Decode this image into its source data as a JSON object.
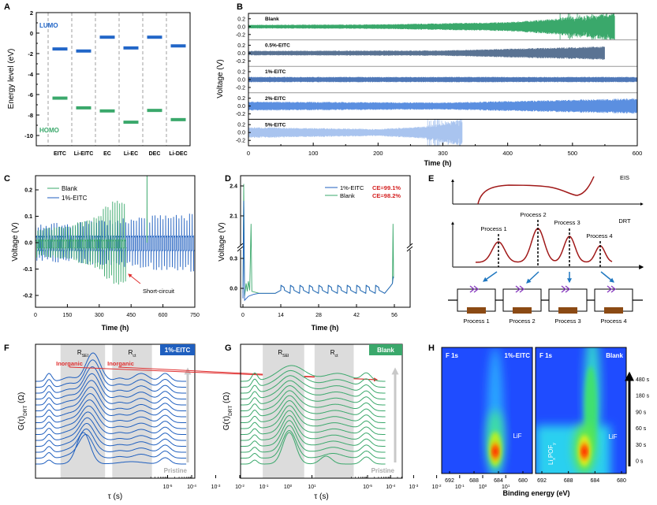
{
  "panels": {
    "A": "A",
    "B": "B",
    "C": "C",
    "D": "D",
    "E": "E",
    "F": "F",
    "G": "G",
    "H": "H"
  },
  "colors": {
    "lumo": "#2166c8",
    "homo": "#3aa86b",
    "blank": "#3aa86b",
    "eitc1": "#1f5fbf",
    "ce_text": "#d42020",
    "annotation_red": "#e03030",
    "drt_curve": "#a01818",
    "arrow_blue": "#1f77c0",
    "chevron_purple": "#8a3fc0",
    "resistor_brown": "#8b4a14",
    "shade_gray": "#dcdcdc",
    "heatmap_bg": "#1f4cff"
  },
  "chart_data": [
    {
      "id": "A",
      "type": "bar",
      "ylabel": "Energy level (eV)",
      "ylim": [
        -11,
        2
      ],
      "yticks": [
        "2",
        "0",
        "-2",
        "-4",
        "-6",
        "-8",
        "-10"
      ],
      "ytick_values": [
        2,
        0,
        -2,
        -4,
        -6,
        -8,
        -10
      ],
      "categories": [
        "EITC",
        "Li-EITC",
        "EC",
        "Li-EC",
        "DEC",
        "Li-DEC"
      ],
      "series": [
        {
          "name": "LUMO",
          "values": [
            -1.55,
            -1.75,
            -0.4,
            -1.45,
            -0.4,
            -1.25
          ]
        },
        {
          "name": "HOMO",
          "values": [
            -6.35,
            -7.3,
            -7.6,
            -8.7,
            -7.55,
            -8.45
          ]
        }
      ]
    },
    {
      "id": "B",
      "type": "line",
      "xlabel": "Time (h)",
      "ylabel": "Voltage (V)",
      "xlim": [
        0,
        600
      ],
      "ylim_each": [
        -0.3,
        0.3
      ],
      "xticks": [
        "0",
        "100",
        "200",
        "300",
        "400",
        "500",
        "600"
      ],
      "yticks": [
        "0.2",
        "0.0",
        "-0.2"
      ],
      "series": [
        {
          "name": "Blank",
          "color": "#3aa86b",
          "end_h": 565,
          "erratic_from_h": 480,
          "amplitude_v": [
            [
              0,
              0.04
            ],
            [
              200,
              0.05
            ],
            [
              400,
              0.1
            ],
            [
              480,
              0.18
            ],
            [
              565,
              0.3
            ]
          ]
        },
        {
          "name": "0.5%-EITC",
          "color": "#5a7393",
          "end_h": 550,
          "erratic_from_h": null,
          "amplitude_v": [
            [
              0,
              0.05
            ],
            [
              300,
              0.06
            ],
            [
              550,
              0.15
            ]
          ]
        },
        {
          "name": "1%-EITC",
          "color": "#4f78b8",
          "end_h": 600,
          "erratic_from_h": null,
          "amplitude_v": [
            [
              0,
              0.06
            ],
            [
              600,
              0.06
            ]
          ]
        },
        {
          "name": "2%-EITC",
          "color": "#5b8fe0",
          "end_h": 600,
          "erratic_from_h": null,
          "amplitude_v": [
            [
              0,
              0.1
            ],
            [
              300,
              0.08
            ],
            [
              600,
              0.17
            ]
          ]
        },
        {
          "name": "5%-EITC",
          "color": "#a9c4ef",
          "end_h": 330,
          "erratic_from_h": 275,
          "amplitude_v": [
            [
              0,
              0.12
            ],
            [
              200,
              0.08
            ],
            [
              270,
              0.13
            ],
            [
              330,
              0.3
            ]
          ]
        }
      ]
    },
    {
      "id": "C",
      "type": "line",
      "xlabel": "Time (h)",
      "ylabel": "Voltage (V)",
      "xlim": [
        0,
        750
      ],
      "ylim": [
        -0.25,
        0.25
      ],
      "xticks": [
        "0",
        "150",
        "300",
        "450",
        "600",
        "750"
      ],
      "yticks": [
        "0.2",
        "0.1",
        "0.0",
        "-0.1",
        "-0.2"
      ],
      "annotation": "Short-circuit",
      "series": [
        {
          "name": "Blank",
          "color": "#3aa86b",
          "period_h": 11,
          "end_h": 420,
          "plateau_v": [
            0.0,
            -0.02
          ],
          "peak_v": [
            [
              0,
              0.05
            ],
            [
              150,
              0.06
            ],
            [
              300,
              0.1
            ],
            [
              410,
              0.17
            ]
          ],
          "spike": {
            "t_h": 525,
            "v": 0.25
          }
        },
        {
          "name": "1%-EITC",
          "color": "#1f5fbf",
          "period_h": 12.5,
          "end_h": 750,
          "plateau_v": [
            0.015,
            -0.03
          ],
          "peak_v": [
            [
              0,
              0.06
            ],
            [
              750,
              0.1
            ]
          ]
        }
      ]
    },
    {
      "id": "D",
      "type": "line",
      "xlabel": "Time (h)",
      "ylabel": "Voltage (V)",
      "xlim": [
        0,
        56
      ],
      "y_break": [
        0.4,
        1.92
      ],
      "xticks": [
        "0",
        "14",
        "28",
        "42",
        "56"
      ],
      "yticks": [
        "2.4",
        "2.1",
        "0.3",
        "0.0"
      ],
      "ytick_values": [
        2.4,
        2.1,
        0.3,
        0.0
      ],
      "cycles": {
        "start_h": 14,
        "period_h": 3.5,
        "count": 12,
        "high_v": 0.03,
        "low_v": -0.05
      },
      "series": [
        {
          "name": "1%-EITC",
          "ce": "CE=99.1%",
          "color": "#1f5fbf",
          "pre": [
            [
              0,
              -0.1
            ],
            [
              0.3,
              2.25
            ],
            [
              0.6,
              -0.12
            ],
            [
              2,
              -0.08
            ],
            [
              4,
              -0.06
            ],
            [
              6,
              -0.05
            ],
            [
              12,
              -0.05
            ]
          ],
          "post": [
            [
              54.5,
              0.02
            ],
            [
              55.3,
              0.05
            ],
            [
              55.6,
              0.12
            ]
          ]
        },
        {
          "name": "Blank",
          "ce": "CE=98.2%",
          "color": "#3aa86b",
          "pre": [
            [
              0,
              -0.05
            ],
            [
              0.3,
              2.42
            ],
            [
              0.6,
              -0.08
            ],
            [
              1.2,
              0.05
            ],
            [
              1.6,
              -0.03
            ],
            [
              2,
              0.07
            ],
            [
              2.5,
              -0.02
            ],
            [
              3,
              2.02
            ],
            [
              3.3,
              -0.03
            ],
            [
              6,
              -0.05
            ],
            [
              12,
              -0.05
            ]
          ],
          "post": [
            [
              54.5,
              0.02
            ],
            [
              55.3,
              0.05
            ],
            [
              55.5,
              2.02
            ],
            [
              55.7,
              0.1
            ]
          ]
        }
      ]
    },
    {
      "id": "F",
      "type": "line",
      "xlabel": "τ (s)",
      "ylabel_main": "G(τ)",
      "ylabel_sub": "DRT",
      "ylabel_unit": " (Ω)",
      "badge": "1%-EITC",
      "bottom_label": "Pristine",
      "trace_count": 15,
      "xticks_exp": [
        "-5",
        "-4",
        "-3",
        "-2",
        "-1",
        "0",
        "1"
      ],
      "regions": [
        {
          "main": "R",
          "sub": "SEI",
          "log_tau": [
            -4.45,
            -2.6
          ]
        },
        {
          "main": "R",
          "sub": "ct",
          "log_tau": [
            -2.3,
            -0.65
          ]
        }
      ],
      "annotations": [
        "Inorganic",
        "Inorganic"
      ],
      "peaks_log_tau_height_width": {
        "pristine": [
          [
            -4.93,
            5,
            0.12
          ],
          [
            -3.5,
            40,
            0.28
          ],
          [
            -1.5,
            3,
            0.5
          ],
          [
            -0.1,
            8,
            0.2
          ]
        ],
        "early": [
          [
            -4.93,
            7,
            0.12
          ],
          [
            -4.1,
            3,
            0.25
          ],
          [
            -3.4,
            30,
            0.3
          ],
          [
            -2,
            2,
            0.2
          ],
          [
            -1.1,
            5,
            0.3
          ],
          [
            -0.1,
            9,
            0.2
          ]
        ],
        "final": [
          [
            -4.93,
            10,
            0.12
          ],
          [
            -4.1,
            5,
            0.25
          ],
          [
            -3.1,
            36,
            0.3
          ],
          [
            -2,
            4,
            0.2
          ],
          [
            -1.1,
            10,
            0.3
          ],
          [
            -0.1,
            10,
            0.2
          ]
        ]
      }
    },
    {
      "id": "G",
      "type": "line",
      "xlabel": "τ (s)",
      "ylabel_main": "G(τ)",
      "ylabel_sub": "DRT",
      "ylabel_unit": " (Ω)",
      "badge": "Blank",
      "bottom_label": "Pristine",
      "trace_count": 15,
      "xticks_exp": [
        "-5",
        "-4",
        "-3",
        "-2",
        "-1",
        "0",
        "1"
      ],
      "regions": [
        {
          "main": "R",
          "sub": "SEI",
          "log_tau": [
            -4.55,
            -2.75
          ]
        },
        {
          "main": "R",
          "sub": "ct",
          "log_tau": [
            -2.3,
            -0.6
          ]
        }
      ],
      "peaks_log_tau_height_width": {
        "pristine": [
          [
            -4.9,
            5,
            0.12
          ],
          [
            -3.4,
            40,
            0.28
          ],
          [
            -1.8,
            10,
            0.25
          ],
          [
            -0.05,
            9,
            0.2
          ]
        ],
        "early": [
          [
            -4.9,
            6,
            0.12
          ],
          [
            -3.4,
            35,
            0.3
          ],
          [
            -1.5,
            6,
            0.4
          ],
          [
            -0.05,
            9,
            0.2
          ]
        ],
        "final": [
          [
            -4.9,
            10,
            0.12
          ],
          [
            -3.3,
            20,
            0.6
          ],
          [
            -1.3,
            10,
            0.55
          ],
          [
            -0.05,
            10,
            0.2
          ]
        ]
      }
    },
    {
      "id": "H",
      "type": "heatmap",
      "xlabel": "Binding energy (eV)",
      "xticks": [
        "692",
        "688",
        "684",
        "680"
      ],
      "xlim": [
        693,
        679
      ],
      "time_labels": [
        "480 s",
        "180 s",
        "90 s",
        "60 s",
        "30 s",
        "0 s"
      ],
      "maps": [
        {
          "element": "F 1s",
          "name": "1%-EITC",
          "peaks": [
            {
              "label": "LiF",
              "binding_energy_ev": 684.5
            }
          ]
        },
        {
          "element": "F 1s",
          "name": "Blank",
          "peaks": [
            {
              "label": "LiF",
              "binding_energy_ev": 684.5
            },
            {
              "label_main": "Li",
              "label_x": "x",
              "label_mid": "POF",
              "label_y": "y",
              "binding_energy_ev": 687.5
            }
          ]
        }
      ]
    }
  ],
  "schematic_E": {
    "eis_label": "EIS",
    "drt_label": "DRT",
    "process_labels": [
      "Process 1",
      "Process 2",
      "Process 3",
      "Process 4"
    ],
    "circuit_labels": [
      "Process 1",
      "Process 2",
      "Process 3",
      "Process 4"
    ]
  }
}
